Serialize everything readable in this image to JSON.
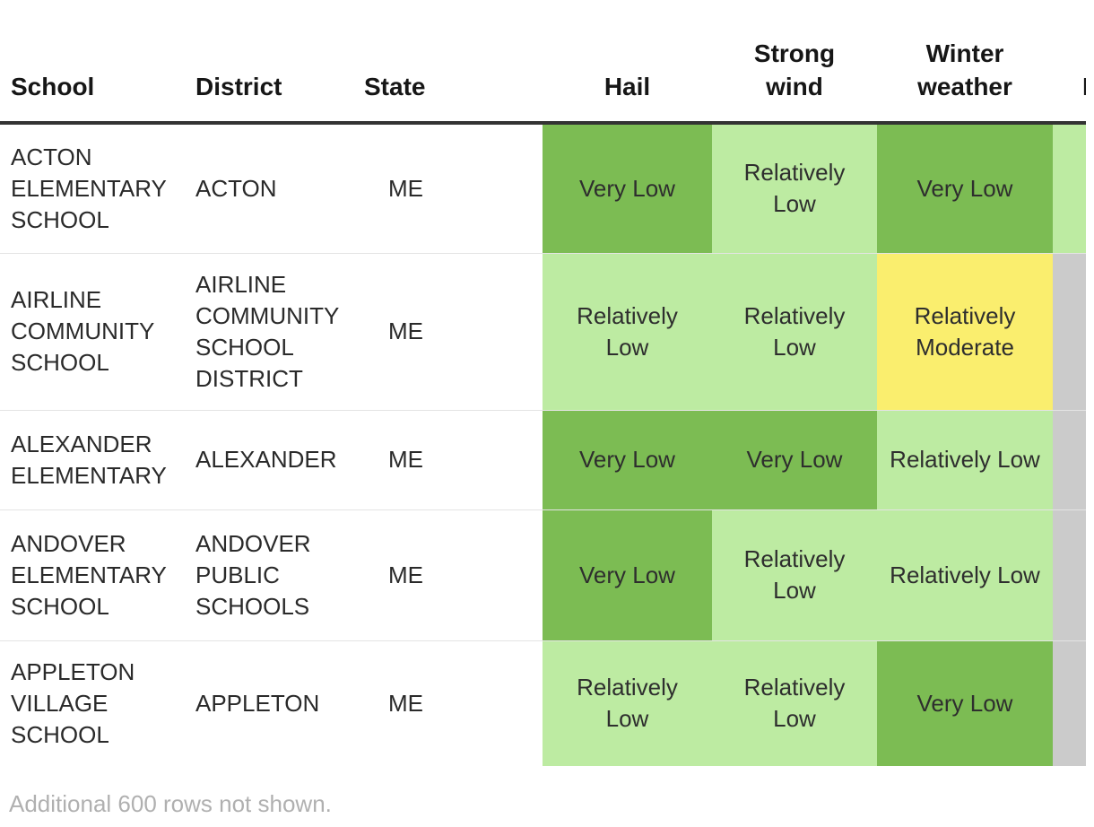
{
  "chart_data": {
    "type": "table",
    "columns": {
      "school": "School",
      "district": "District",
      "state": "State",
      "hail": "Hail",
      "strong_wind": "Strong\nwind",
      "winter_weather": "Winter\nweather",
      "clipped_fragment": "I"
    },
    "rating_scale_visible": [
      "Very Low",
      "Relatively Low",
      "Relatively Moderate"
    ],
    "rows": [
      {
        "school": "ACTON ELEMENTARY SCHOOL",
        "district": "ACTON",
        "state": "ME",
        "ratings": {
          "hail": {
            "label": "Very Low",
            "level": "very_low"
          },
          "strong_wind": {
            "label": "Relatively Low",
            "level": "relatively_low"
          },
          "winter_weather": {
            "label": "Very Low",
            "level": "very_low"
          },
          "clipped": {
            "label": "",
            "level": "relatively_low"
          }
        }
      },
      {
        "school": "AIRLINE COMMUNITY SCHOOL",
        "district": "AIRLINE COMMUNITY SCHOOL DISTRICT",
        "state": "ME",
        "ratings": {
          "hail": {
            "label": "Relatively Low",
            "level": "relatively_low"
          },
          "strong_wind": {
            "label": "Relatively Low",
            "level": "relatively_low"
          },
          "winter_weather": {
            "label": "Relatively Moderate",
            "level": "relatively_moderate"
          },
          "clipped": {
            "label": "",
            "level": "gray"
          }
        }
      },
      {
        "school": "ALEXANDER ELEMENTARY",
        "district": "ALEXANDER",
        "state": "ME",
        "ratings": {
          "hail": {
            "label": "Very Low",
            "level": "very_low"
          },
          "strong_wind": {
            "label": "Very Low",
            "level": "very_low"
          },
          "winter_weather": {
            "label": "Relatively Low",
            "level": "relatively_low"
          },
          "clipped": {
            "label": "",
            "level": "gray"
          }
        }
      },
      {
        "school": "ANDOVER ELEMENTARY SCHOOL",
        "district": "ANDOVER PUBLIC SCHOOLS",
        "state": "ME",
        "ratings": {
          "hail": {
            "label": "Very Low",
            "level": "very_low"
          },
          "strong_wind": {
            "label": "Relatively Low",
            "level": "relatively_low"
          },
          "winter_weather": {
            "label": "Relatively Low",
            "level": "relatively_low"
          },
          "clipped": {
            "label": "",
            "level": "gray"
          }
        }
      },
      {
        "school": "APPLETON VILLAGE SCHOOL",
        "district": "APPLETON",
        "state": "ME",
        "ratings": {
          "hail": {
            "label": "Relatively Low",
            "level": "relatively_low"
          },
          "strong_wind": {
            "label": "Relatively Low",
            "level": "relatively_low"
          },
          "winter_weather": {
            "label": "Very Low",
            "level": "very_low"
          },
          "clipped": {
            "label": "",
            "level": "gray"
          }
        }
      }
    ],
    "palette": {
      "very_low": "#7cbc53",
      "relatively_low": "#bdeba2",
      "relatively_moderate": "#faee6e",
      "gray": "#cbcbcb"
    }
  },
  "footer": {
    "note": "Additional 600 rows not shown."
  }
}
